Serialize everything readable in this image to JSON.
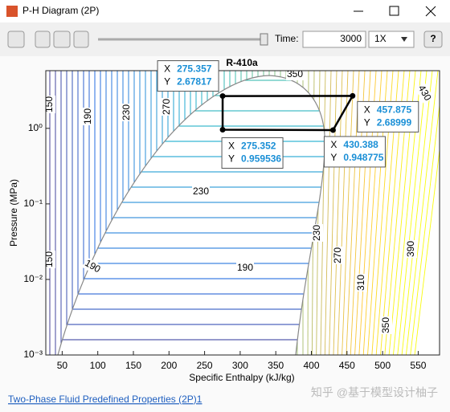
{
  "window": {
    "title": "P-H Diagram (2P)"
  },
  "toolbar": {
    "time_label": "Time:",
    "time_value": 3000,
    "speed": "1X",
    "help": "?"
  },
  "chart_data": {
    "type": "line",
    "title": "R-410a",
    "x_label": "Specific Enthalpy (kJ/kg)",
    "y_label": "Pressure (MPa)",
    "log_y": true,
    "grid": false,
    "xlim": [
      27,
      580
    ],
    "ylim": [
      0.001,
      5.8
    ],
    "xticks": [
      50,
      100,
      150,
      200,
      250,
      300,
      350,
      400,
      450,
      500,
      550
    ],
    "yticks": [
      {
        "value": 0.001,
        "label": "10⁻³"
      },
      {
        "value": 0.01,
        "label": "10⁻²"
      },
      {
        "value": 0.1,
        "label": "10⁻¹"
      },
      {
        "value": 1,
        "label": "10⁰"
      }
    ],
    "series": [
      {
        "color": "#000000",
        "x": [
          275.357,
          457.875,
          430.388,
          275.352
        ],
        "values": [
          2.67817,
          2.68999,
          0.948775,
          0.959536
        ]
      }
    ],
    "datatip_labels": [
      "X",
      "Y"
    ],
    "contour_labels": [
      150,
      190,
      230,
      270,
      350,
      430,
      230,
      190,
      190,
      150,
      230,
      270,
      310,
      350,
      390
    ]
  },
  "footer": {
    "link": "Two-Phase Fluid Predefined Properties (2P)1",
    "watermark": "知乎 @基于模型设计柚子"
  }
}
